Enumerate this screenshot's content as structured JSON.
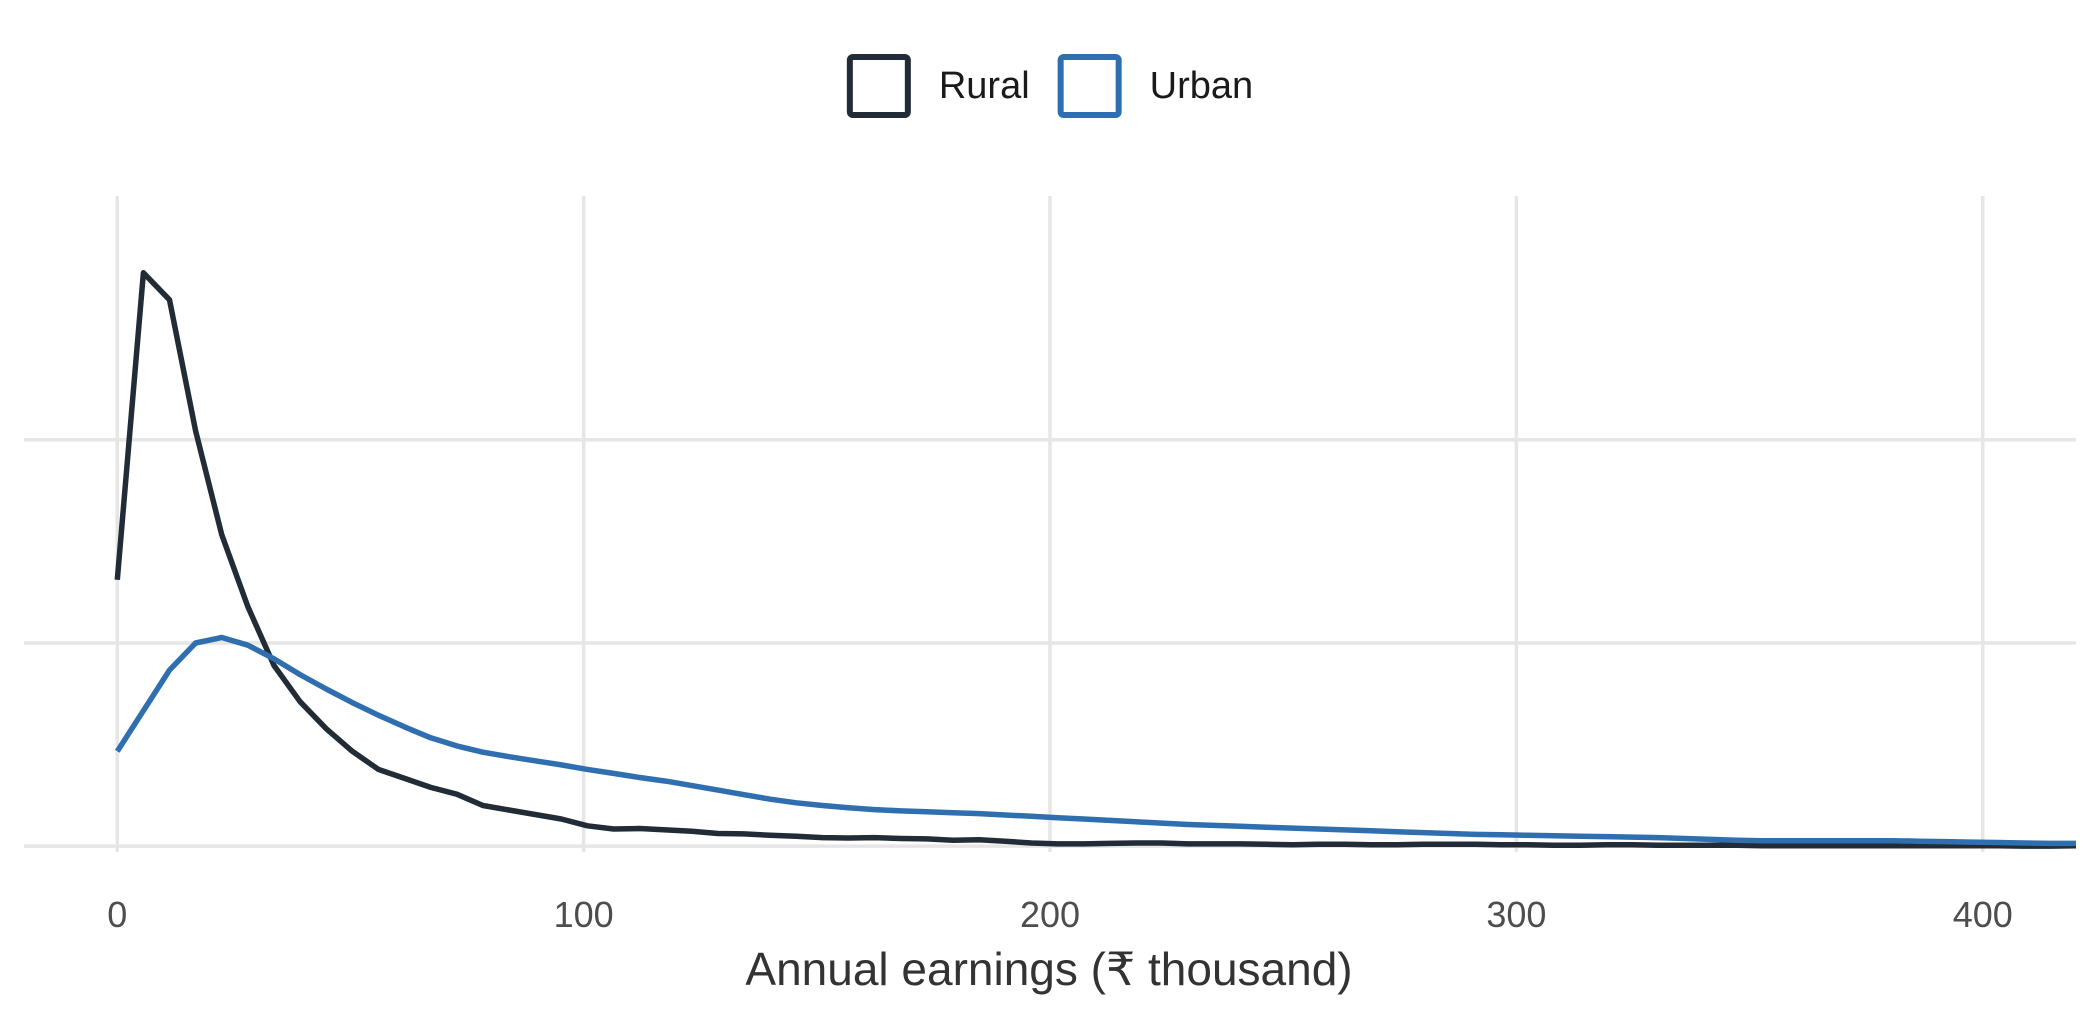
{
  "chart_data": {
    "type": "line",
    "title": "",
    "xlabel": "Annual earnings (₹ thousand)",
    "ylabel": "",
    "xlim": [
      -20,
      420
    ],
    "ylim": [
      -0.00013,
      0.0144
    ],
    "x_ticks": [
      0,
      100,
      200,
      300,
      400
    ],
    "x_tick_labels": [
      "0",
      "100",
      "200",
      "300",
      "400"
    ],
    "y_gridlines": [
      0,
      0.0045,
      0.009
    ],
    "y_tick_labels": [],
    "grid": true,
    "legend": {
      "position": "top"
    },
    "series": [
      {
        "name": "Rural",
        "color": "#222c36",
        "points": [
          [
            0,
            0.0059
          ],
          [
            5.6,
            0.0127
          ],
          [
            11.2,
            0.0121
          ],
          [
            16.8,
            0.0092
          ],
          [
            22.4,
            0.0069
          ],
          [
            28,
            0.0053
          ],
          [
            33.6,
            0.004
          ],
          [
            39.2,
            0.0032
          ],
          [
            44.8,
            0.0026
          ],
          [
            50.4,
            0.0021
          ],
          [
            56,
            0.0017
          ],
          [
            61.6,
            0.0015
          ],
          [
            67.2,
            0.0013
          ],
          [
            72.8,
            0.00115
          ],
          [
            78.4,
            0.0009
          ],
          [
            84,
            0.0008
          ],
          [
            89.6,
            0.0007
          ],
          [
            95.2,
            0.0006
          ],
          [
            100.8,
            0.00045
          ],
          [
            106.4,
            0.00038
          ],
          [
            112,
            0.00039
          ],
          [
            117.6,
            0.00036
          ],
          [
            123.2,
            0.00033
          ],
          [
            128.8,
            0.00028
          ],
          [
            134.4,
            0.00027
          ],
          [
            140,
            0.00024
          ],
          [
            145.6,
            0.00022
          ],
          [
            151.2,
            0.00019
          ],
          [
            156.8,
            0.00018
          ],
          [
            162.4,
            0.00019
          ],
          [
            168,
            0.00017
          ],
          [
            173.6,
            0.00016
          ],
          [
            179.2,
            0.00013
          ],
          [
            184.8,
            0.00014
          ],
          [
            190.4,
            0.00011
          ],
          [
            196,
            7e-05
          ],
          [
            201.6,
            5e-05
          ],
          [
            207.2,
            5e-05
          ],
          [
            212.8,
            6e-05
          ],
          [
            218.4,
            7e-05
          ],
          [
            224,
            7e-05
          ],
          [
            229.6,
            5e-05
          ],
          [
            235.2,
            5e-05
          ],
          [
            240.8,
            5e-05
          ],
          [
            246.4,
            4e-05
          ],
          [
            252,
            3e-05
          ],
          [
            257.6,
            4e-05
          ],
          [
            263.2,
            4e-05
          ],
          [
            268.8,
            3e-05
          ],
          [
            274.4,
            3e-05
          ],
          [
            280,
            4e-05
          ],
          [
            285.6,
            4e-05
          ],
          [
            291.2,
            4e-05
          ],
          [
            296.8,
            3e-05
          ],
          [
            302.4,
            3e-05
          ],
          [
            308,
            2e-05
          ],
          [
            313.6,
            2e-05
          ],
          [
            319.2,
            3e-05
          ],
          [
            324.8,
            3e-05
          ],
          [
            330.4,
            2e-05
          ],
          [
            336,
            2e-05
          ],
          [
            341.6,
            2e-05
          ],
          [
            347.2,
            2e-05
          ],
          [
            352.8,
            1e-05
          ],
          [
            358.4,
            1e-05
          ],
          [
            364,
            1e-05
          ],
          [
            369.6,
            1e-05
          ],
          [
            375.2,
            1e-05
          ],
          [
            380.8,
            1e-05
          ],
          [
            386.4,
            1e-05
          ],
          [
            392,
            1e-05
          ],
          [
            397.6,
            1e-05
          ],
          [
            403.2,
            1e-05
          ],
          [
            408.8,
            0
          ],
          [
            414.4,
            0
          ],
          [
            420,
            1e-05
          ]
        ]
      },
      {
        "name": "Urban",
        "color": "#2f6faf",
        "points": [
          [
            0,
            0.0021
          ],
          [
            5.6,
            0.003
          ],
          [
            11.2,
            0.0039
          ],
          [
            16.8,
            0.0045
          ],
          [
            22.4,
            0.00462
          ],
          [
            28,
            0.00445
          ],
          [
            33.6,
            0.00415
          ],
          [
            39.2,
            0.0038
          ],
          [
            44.8,
            0.00348
          ],
          [
            50.4,
            0.00318
          ],
          [
            56,
            0.0029
          ],
          [
            61.6,
            0.00264
          ],
          [
            67.2,
            0.0024
          ],
          [
            72.8,
            0.00222
          ],
          [
            78.4,
            0.00208
          ],
          [
            84,
            0.00198
          ],
          [
            89.6,
            0.00189
          ],
          [
            95.2,
            0.0018
          ],
          [
            100.8,
            0.0017
          ],
          [
            106.4,
            0.00161
          ],
          [
            112,
            0.00152
          ],
          [
            117.6,
            0.00144
          ],
          [
            123.2,
            0.00134
          ],
          [
            128.8,
            0.00124
          ],
          [
            134.4,
            0.00114
          ],
          [
            140,
            0.00104
          ],
          [
            145.6,
            0.00096
          ],
          [
            151.2,
            0.0009
          ],
          [
            156.8,
            0.00085
          ],
          [
            162.4,
            0.00081
          ],
          [
            168,
            0.00078
          ],
          [
            173.6,
            0.00076
          ],
          [
            179.2,
            0.00074
          ],
          [
            184.8,
            0.00072
          ],
          [
            190.4,
            0.00069
          ],
          [
            196,
            0.00066
          ],
          [
            201.6,
            0.00063
          ],
          [
            207.2,
            0.0006
          ],
          [
            212.8,
            0.00057
          ],
          [
            218.4,
            0.00054
          ],
          [
            224,
            0.00051
          ],
          [
            229.6,
            0.00048
          ],
          [
            235.2,
            0.00046
          ],
          [
            240.8,
            0.00044
          ],
          [
            246.4,
            0.00042
          ],
          [
            252,
            0.0004
          ],
          [
            257.6,
            0.00038
          ],
          [
            263.2,
            0.00036
          ],
          [
            268.8,
            0.00034
          ],
          [
            274.4,
            0.00032
          ],
          [
            280,
            0.0003
          ],
          [
            285.6,
            0.00028
          ],
          [
            291.2,
            0.00026
          ],
          [
            296.8,
            0.00025
          ],
          [
            302.4,
            0.00024
          ],
          [
            308,
            0.00023
          ],
          [
            313.6,
            0.00022
          ],
          [
            319.2,
            0.00021
          ],
          [
            324.8,
            0.0002
          ],
          [
            330.4,
            0.00019
          ],
          [
            336,
            0.00017
          ],
          [
            341.6,
            0.00015
          ],
          [
            347.2,
            0.00013
          ],
          [
            352.8,
            0.00012
          ],
          [
            358.4,
            0.00012
          ],
          [
            364,
            0.00012
          ],
          [
            369.6,
            0.00012
          ],
          [
            375.2,
            0.00012
          ],
          [
            380.8,
            0.00012
          ],
          [
            386.4,
            0.00011
          ],
          [
            392,
            0.0001
          ],
          [
            397.6,
            9e-05
          ],
          [
            403.2,
            8e-05
          ],
          [
            408.8,
            7e-05
          ],
          [
            414.4,
            6e-05
          ],
          [
            420,
            6e-05
          ]
        ]
      }
    ]
  }
}
